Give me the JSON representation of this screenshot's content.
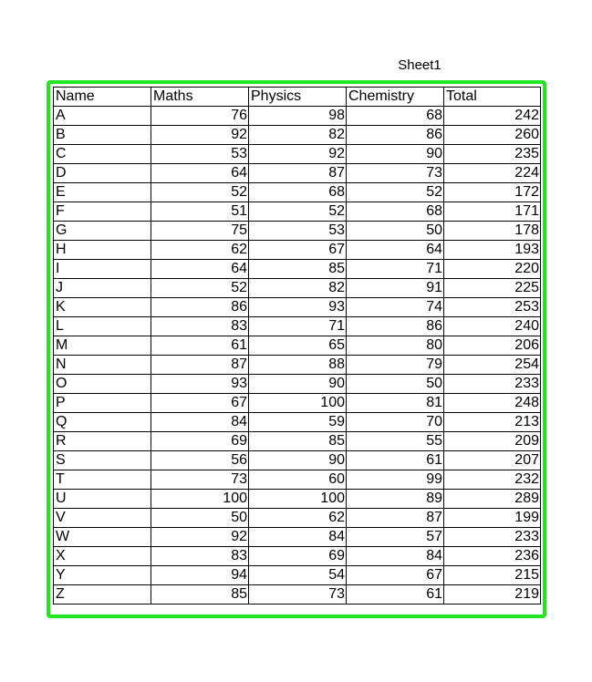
{
  "sheet": {
    "title": "Sheet1"
  },
  "colors": {
    "highlight": "#22e622",
    "grid": "#000000"
  },
  "table": {
    "headers": [
      "Name",
      "Maths",
      "Physics",
      "Chemistry",
      "Total"
    ],
    "rows": [
      [
        "A",
        "76",
        "98",
        "68",
        "242"
      ],
      [
        "B",
        "92",
        "82",
        "86",
        "260"
      ],
      [
        "C",
        "53",
        "92",
        "90",
        "235"
      ],
      [
        "D",
        "64",
        "87",
        "73",
        "224"
      ],
      [
        "E",
        "52",
        "68",
        "52",
        "172"
      ],
      [
        "F",
        "51",
        "52",
        "68",
        "171"
      ],
      [
        "G",
        "75",
        "53",
        "50",
        "178"
      ],
      [
        "H",
        "62",
        "67",
        "64",
        "193"
      ],
      [
        "I",
        "64",
        "85",
        "71",
        "220"
      ],
      [
        "J",
        "52",
        "82",
        "91",
        "225"
      ],
      [
        "K",
        "86",
        "93",
        "74",
        "253"
      ],
      [
        "L",
        "83",
        "71",
        "86",
        "240"
      ],
      [
        "M",
        "61",
        "65",
        "80",
        "206"
      ],
      [
        "N",
        "87",
        "88",
        "79",
        "254"
      ],
      [
        "O",
        "93",
        "90",
        "50",
        "233"
      ],
      [
        "P",
        "67",
        "100",
        "81",
        "248"
      ],
      [
        "Q",
        "84",
        "59",
        "70",
        "213"
      ],
      [
        "R",
        "69",
        "85",
        "55",
        "209"
      ],
      [
        "S",
        "56",
        "90",
        "61",
        "207"
      ],
      [
        "T",
        "73",
        "60",
        "99",
        "232"
      ],
      [
        "U",
        "100",
        "100",
        "89",
        "289"
      ],
      [
        "V",
        "50",
        "62",
        "87",
        "199"
      ],
      [
        "W",
        "92",
        "84",
        "57",
        "233"
      ],
      [
        "X",
        "83",
        "69",
        "84",
        "236"
      ],
      [
        "Y",
        "94",
        "54",
        "67",
        "215"
      ],
      [
        "Z",
        "85",
        "73",
        "61",
        "219"
      ]
    ]
  }
}
